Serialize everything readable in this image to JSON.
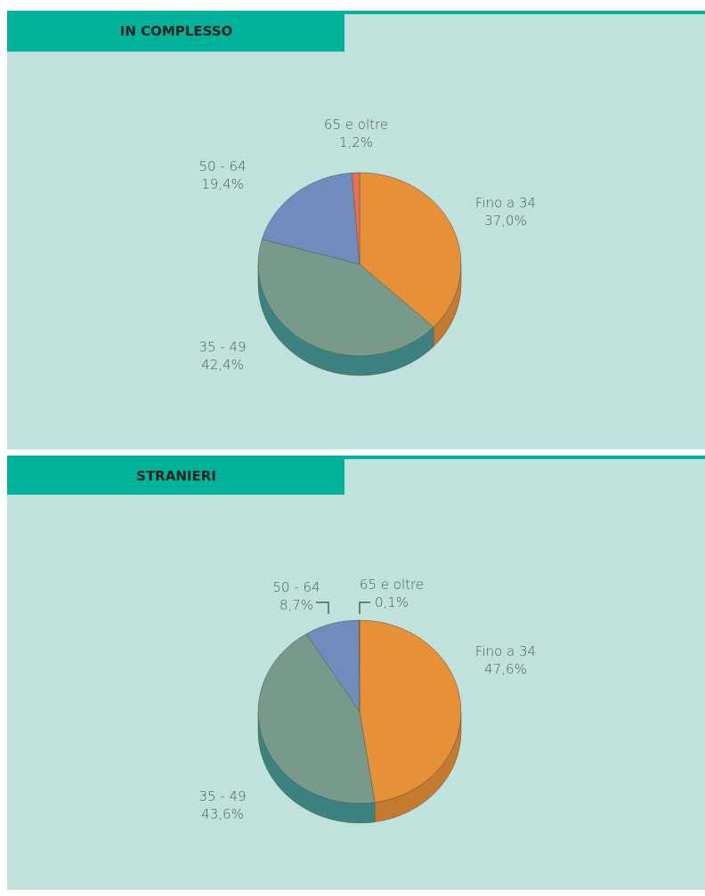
{
  "chart_data": [
    {
      "type": "pie",
      "title": "IN COMPLESSO",
      "categories": [
        "Fino a 34",
        "35 - 49",
        "50 - 64",
        "65 e oltre"
      ],
      "values": [
        37.0,
        42.4,
        19.4,
        1.2
      ],
      "value_labels": [
        "37,0%",
        "42,4%",
        "19,4%",
        "1,2%"
      ],
      "colors": [
        "#e69137",
        "#779a8a",
        "#6f8cbc",
        "#e8704a"
      ]
    },
    {
      "type": "pie",
      "title": "STRANIERI",
      "categories": [
        "Fino a 34",
        "35 - 49",
        "50 - 64",
        "65 e oltre"
      ],
      "values": [
        47.6,
        43.6,
        8.7,
        0.1
      ],
      "value_labels": [
        "47,6%",
        "43,6%",
        "8,7%",
        "0,1%"
      ],
      "colors": [
        "#e69137",
        "#779a8a",
        "#6f8cbc",
        "#e8704a"
      ]
    }
  ]
}
